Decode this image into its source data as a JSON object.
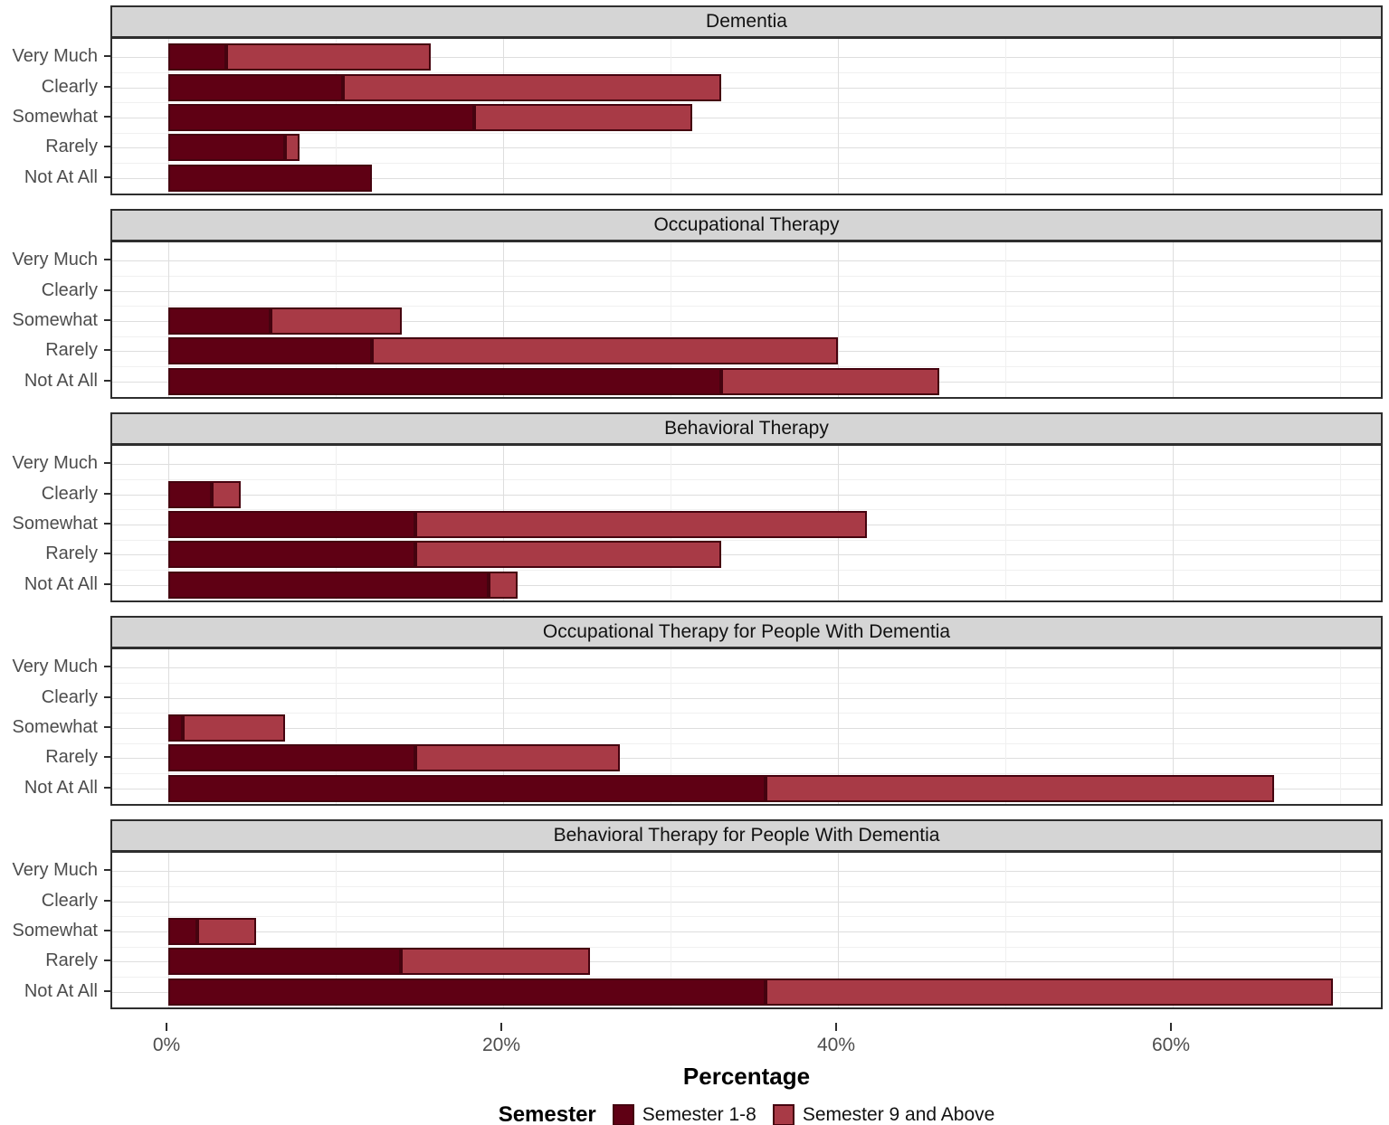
{
  "chart_data": {
    "type": "bar",
    "orientation": "horizontal",
    "stacked": true,
    "grid": true,
    "title": "",
    "xlabel": "Percentage",
    "ylabel": "",
    "xlim": [
      -3.4,
      72.7
    ],
    "x_ticks": [
      0,
      20,
      40,
      60
    ],
    "x_tick_labels": [
      "0%",
      "20%",
      "40%",
      "60%"
    ],
    "x_minor_gridlines": [
      10,
      30,
      50,
      70
    ],
    "categories": [
      "Very Much",
      "Clearly",
      "Somewhat",
      "Rarely",
      "Not At All"
    ],
    "series_names": [
      "Semester 1-8",
      "Semester 9 and Above"
    ],
    "facets": [
      {
        "title": "Dementia",
        "series": [
          {
            "name": "Semester 1-8",
            "values": [
              3.48,
              10.43,
              18.26,
              6.96,
              12.17
            ]
          },
          {
            "name": "Semester 9 and Above",
            "values": [
              12.17,
              22.61,
              13.04,
              0.87,
              0
            ]
          }
        ]
      },
      {
        "title": "Occupational Therapy",
        "series": [
          {
            "name": "Semester 1-8",
            "values": [
              0,
              0,
              6.09,
              12.17,
              33.04
            ]
          },
          {
            "name": "Semester 9 and Above",
            "values": [
              0,
              0,
              7.83,
              27.83,
              13.04
            ]
          }
        ]
      },
      {
        "title": "Behavioral Therapy",
        "series": [
          {
            "name": "Semester 1-8",
            "values": [
              0,
              2.61,
              14.78,
              14.78,
              19.13
            ]
          },
          {
            "name": "Semester 9 and Above",
            "values": [
              0,
              1.74,
              26.96,
              18.26,
              1.74
            ]
          }
        ]
      },
      {
        "title": "Occupational Therapy for People With Dementia",
        "series": [
          {
            "name": "Semester 1-8",
            "values": [
              0,
              0,
              0.87,
              14.78,
              35.65
            ]
          },
          {
            "name": "Semester 9 and Above",
            "values": [
              0,
              0,
              6.09,
              12.17,
              30.43
            ]
          }
        ]
      },
      {
        "title": "Behavioral Therapy for People With Dementia",
        "series": [
          {
            "name": "Semester 1-8",
            "values": [
              0,
              0,
              1.74,
              13.91,
              35.65
            ]
          },
          {
            "name": "Semester 9 and Above",
            "values": [
              0,
              0,
              3.48,
              11.3,
              33.91
            ]
          }
        ]
      }
    ],
    "legend": {
      "position": "bottom",
      "title": "Semester",
      "entries": [
        {
          "label": "Semester 1-8",
          "color": "#5F0014"
        },
        {
          "label": "Semester 9 and Above",
          "color": "#A83A46"
        }
      ]
    },
    "colors": {
      "series_1": "#5F0014",
      "series_2": "#A83A46",
      "bar_border": "#45030F",
      "strip_background": "#D5D5D5",
      "panel_border": "#2E2E2E",
      "grid_major": "#DEDEDE",
      "grid_minor": "#F0F0F0",
      "axis_text": "#4D4D4D"
    }
  }
}
